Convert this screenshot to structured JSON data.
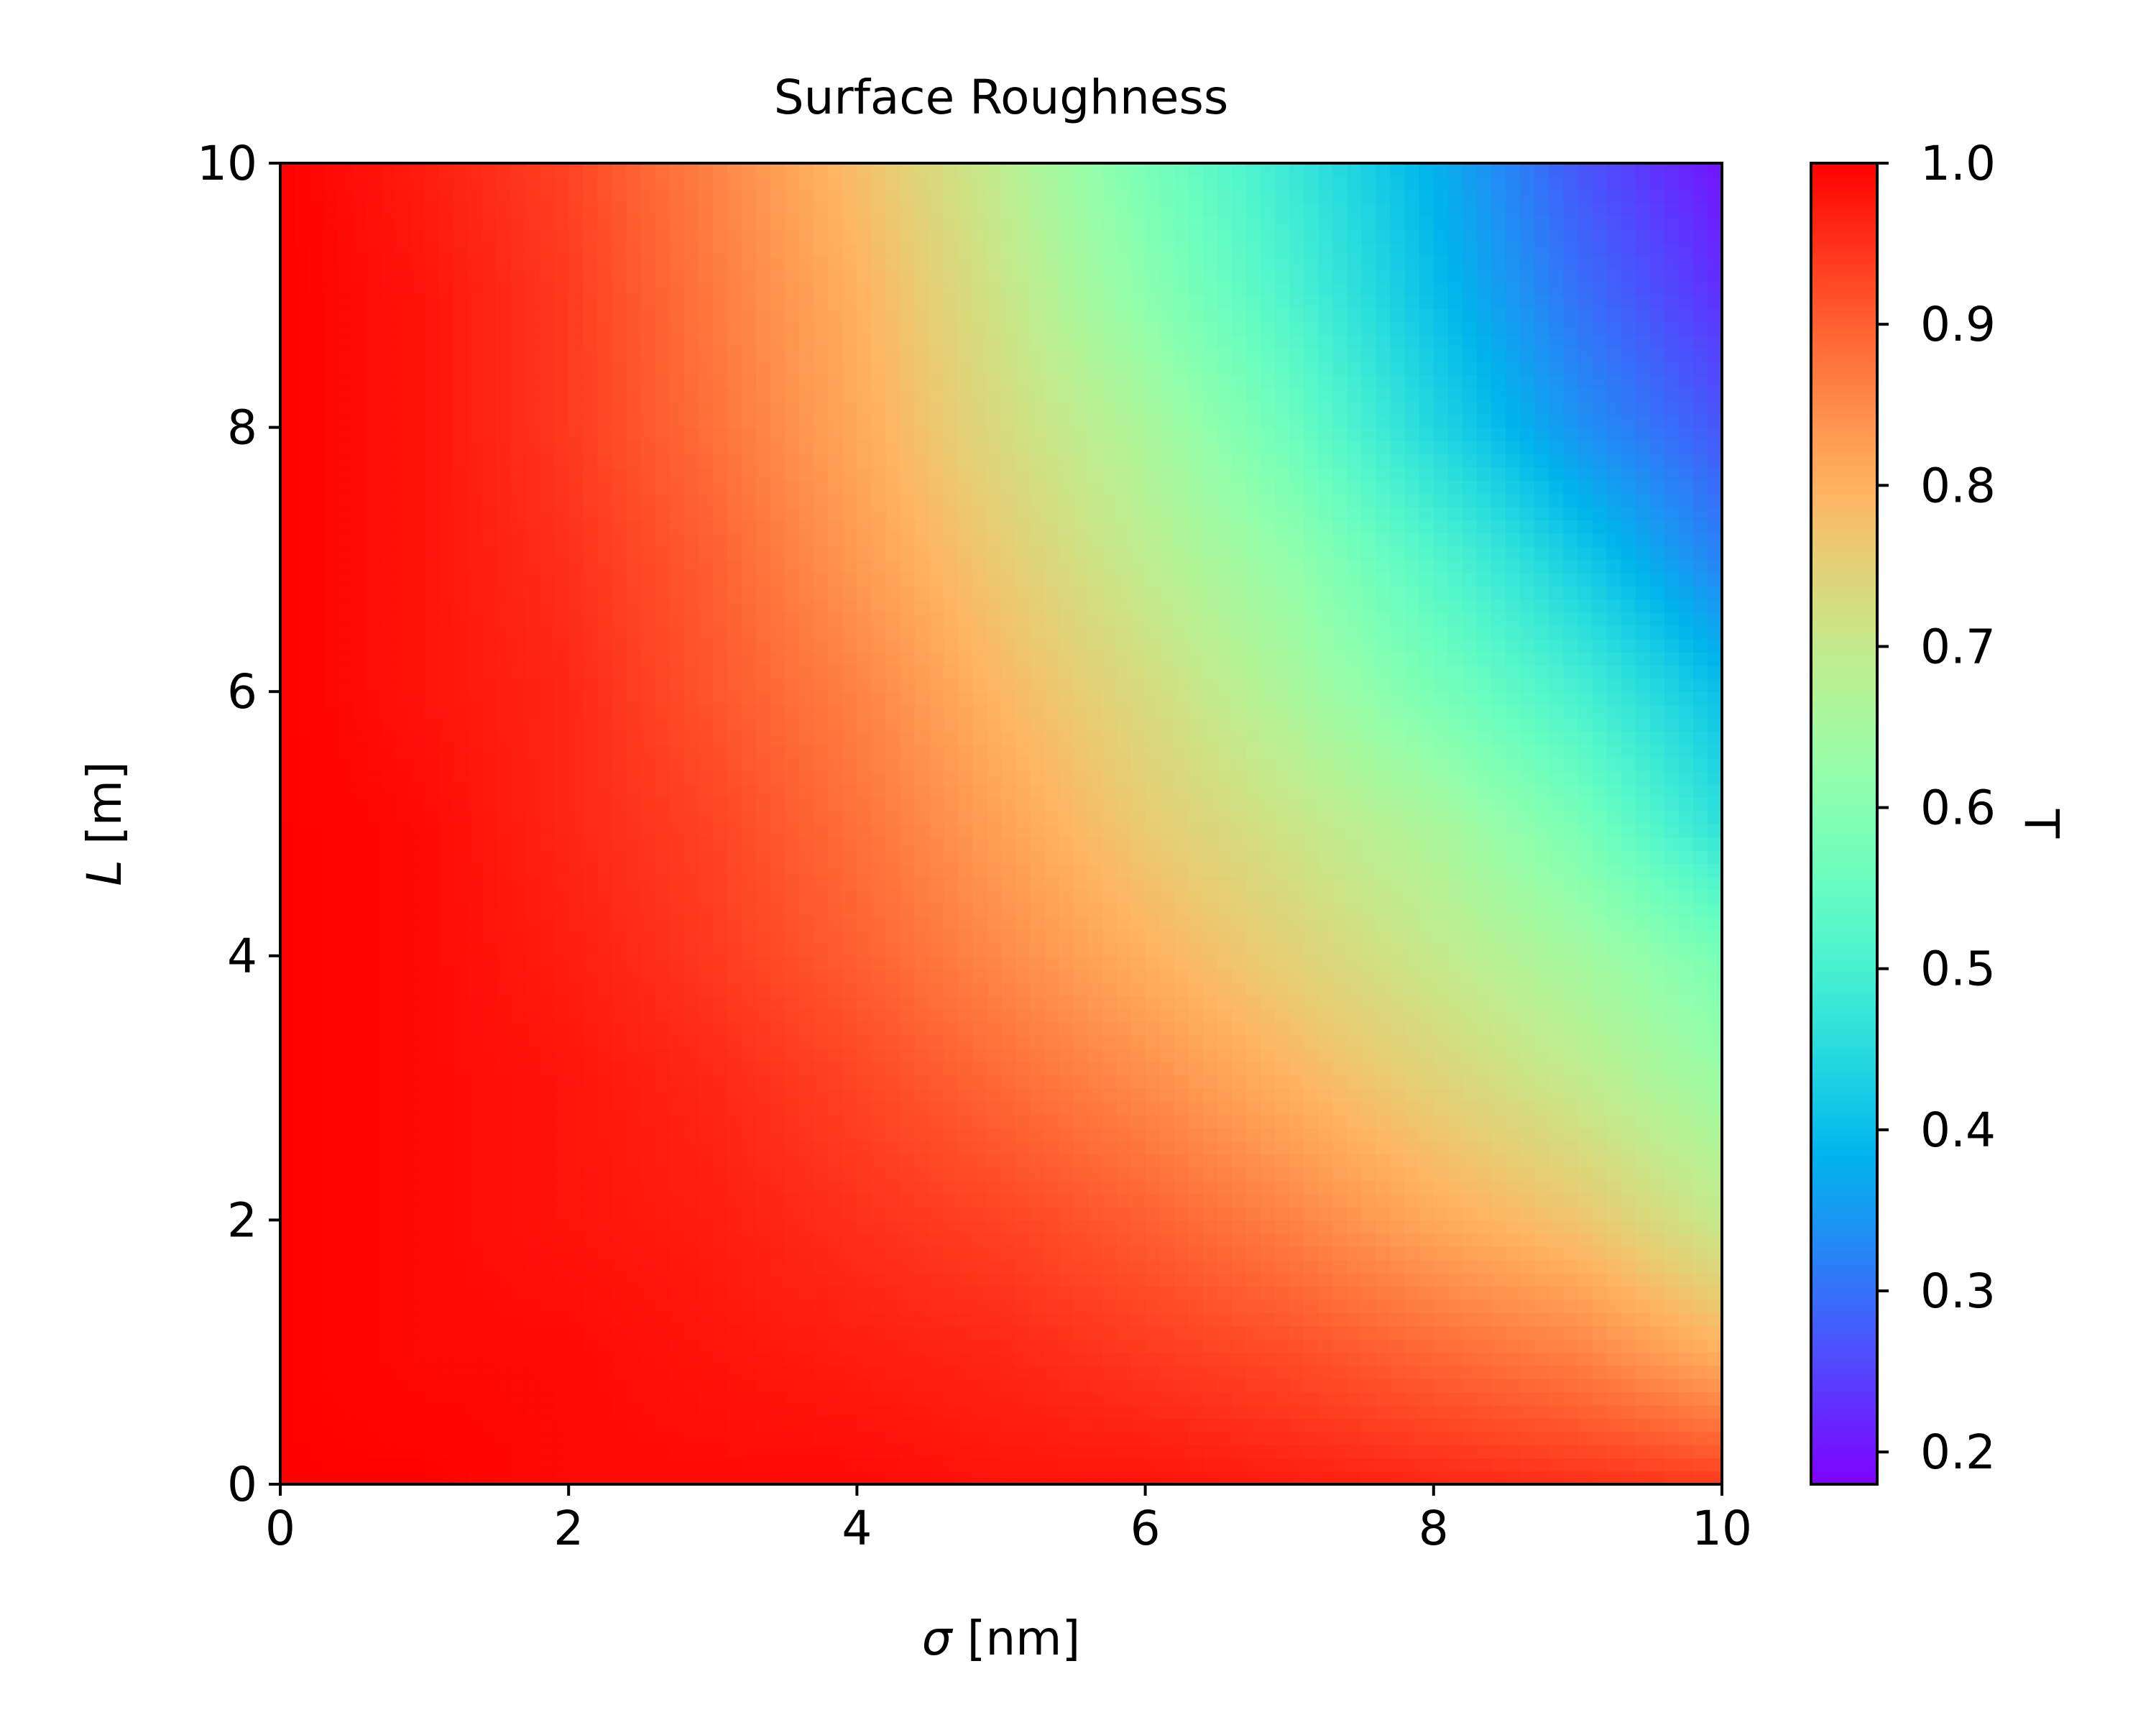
{
  "chart_data": {
    "type": "heatmap",
    "title": "Surface Roughness",
    "xlabel": {
      "symbol": "σ",
      "unit": " [nm]"
    },
    "ylabel": {
      "symbol": "L",
      "unit": " [m]"
    },
    "colorbar_label": "T",
    "xlim": [
      0,
      10
    ],
    "ylim": [
      0,
      10
    ],
    "clim": [
      0.18,
      1.0
    ],
    "colormap": "rainbow",
    "x_ticks": [
      {
        "value": 0,
        "label": "0"
      },
      {
        "value": 2,
        "label": "2"
      },
      {
        "value": 4,
        "label": "4"
      },
      {
        "value": 6,
        "label": "6"
      },
      {
        "value": 8,
        "label": "8"
      },
      {
        "value": 10,
        "label": "10"
      }
    ],
    "y_ticks": [
      {
        "value": 0,
        "label": "0"
      },
      {
        "value": 2,
        "label": "2"
      },
      {
        "value": 4,
        "label": "4"
      },
      {
        "value": 6,
        "label": "6"
      },
      {
        "value": 8,
        "label": "8"
      },
      {
        "value": 10,
        "label": "10"
      }
    ],
    "colorbar_ticks": [
      {
        "value": 1.0,
        "label": "1.0"
      },
      {
        "value": 0.9,
        "label": "0.9"
      },
      {
        "value": 0.8,
        "label": "0.8"
      },
      {
        "value": 0.7,
        "label": "0.7"
      },
      {
        "value": 0.6,
        "label": "0.6"
      },
      {
        "value": 0.5,
        "label": "0.5"
      },
      {
        "value": 0.4,
        "label": "0.4"
      },
      {
        "value": 0.3,
        "label": "0.3"
      },
      {
        "value": 0.2,
        "label": "0.2"
      }
    ],
    "x": [
      0,
      1,
      2,
      3,
      4,
      5,
      6,
      7,
      8,
      9,
      10
    ],
    "y": [
      0,
      1,
      2,
      3,
      4,
      5,
      6,
      7,
      8,
      9,
      10
    ],
    "z": [
      [
        1.0,
        1.0,
        0.99,
        0.99,
        0.99,
        0.98,
        0.98,
        0.97,
        0.96,
        0.95,
        0.94
      ],
      [
        1.0,
        0.99,
        0.99,
        0.98,
        0.97,
        0.96,
        0.94,
        0.92,
        0.89,
        0.86,
        0.8
      ],
      [
        1.0,
        0.99,
        0.98,
        0.97,
        0.95,
        0.93,
        0.9,
        0.86,
        0.81,
        0.77,
        0.7
      ],
      [
        1.0,
        0.99,
        0.98,
        0.96,
        0.93,
        0.89,
        0.85,
        0.8,
        0.75,
        0.7,
        0.64
      ],
      [
        1.0,
        0.99,
        0.97,
        0.94,
        0.9,
        0.85,
        0.8,
        0.75,
        0.7,
        0.65,
        0.58
      ],
      [
        1.0,
        0.99,
        0.96,
        0.93,
        0.88,
        0.82,
        0.76,
        0.71,
        0.66,
        0.58,
        0.46
      ],
      [
        1.0,
        0.98,
        0.96,
        0.91,
        0.86,
        0.79,
        0.73,
        0.66,
        0.58,
        0.5,
        0.4
      ],
      [
        1.0,
        0.98,
        0.95,
        0.9,
        0.83,
        0.76,
        0.69,
        0.62,
        0.52,
        0.42,
        0.32
      ],
      [
        1.0,
        0.98,
        0.94,
        0.88,
        0.81,
        0.73,
        0.66,
        0.56,
        0.44,
        0.34,
        0.27
      ],
      [
        1.0,
        0.98,
        0.94,
        0.87,
        0.8,
        0.71,
        0.61,
        0.51,
        0.4,
        0.3,
        0.23
      ],
      [
        1.0,
        0.97,
        0.93,
        0.86,
        0.78,
        0.69,
        0.58,
        0.48,
        0.38,
        0.27,
        0.2
      ]
    ]
  }
}
